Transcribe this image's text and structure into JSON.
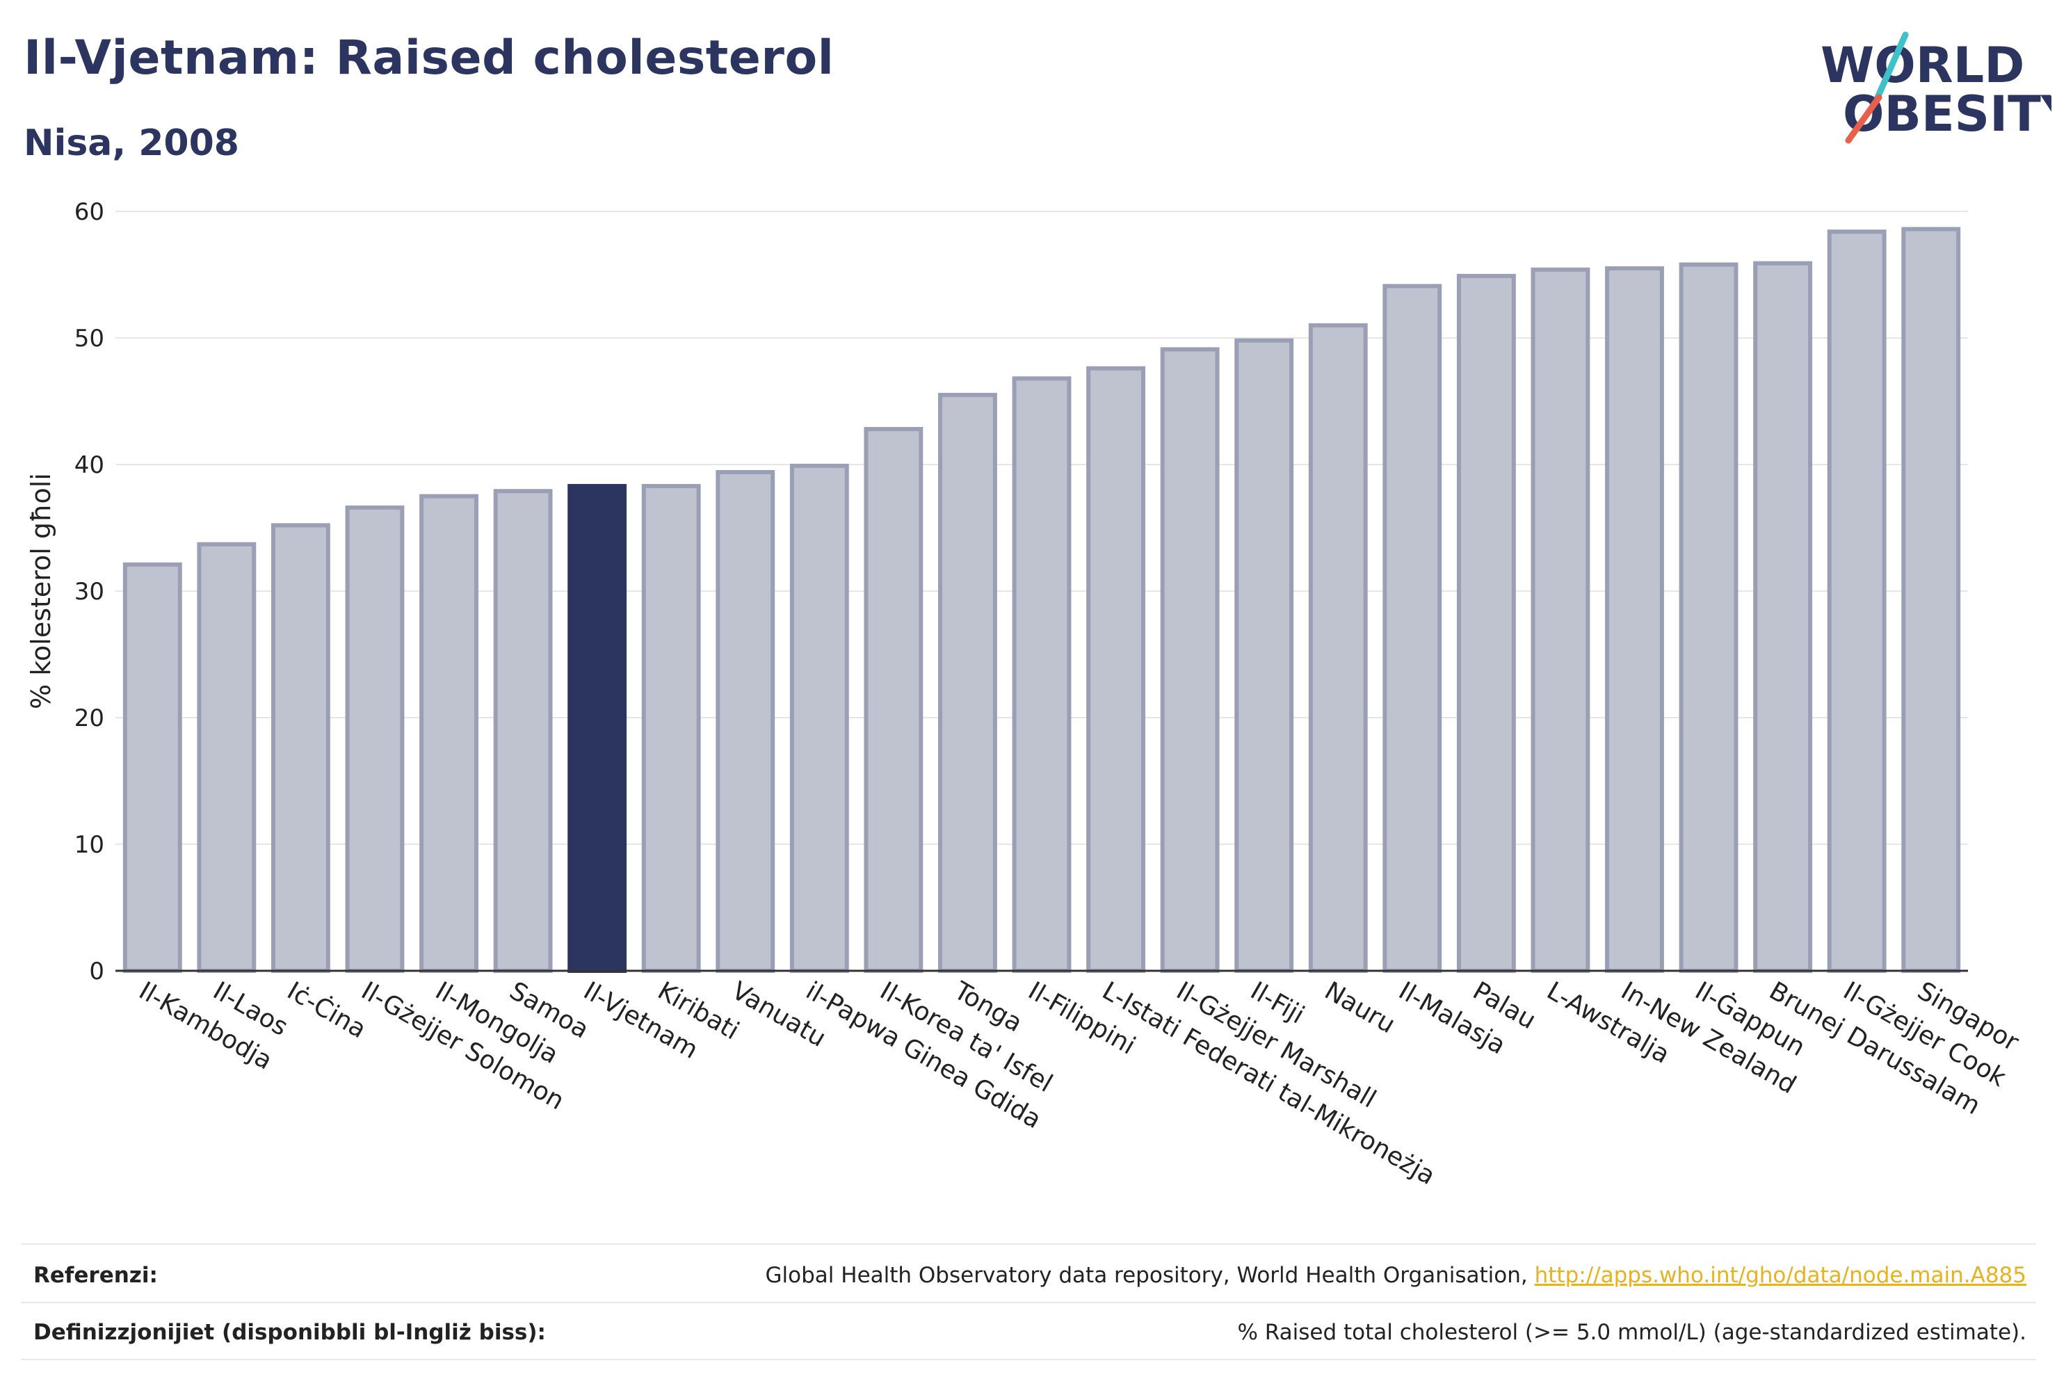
{
  "header": {
    "title": "Il-Vjetnam: Raised cholesterol",
    "subtitle": "Nisa, 2008"
  },
  "logo": {
    "line1": "WORLD",
    "line2": "OBESITY",
    "accent_colors": [
      "#3fc1c9",
      "#e8604c"
    ],
    "text_color": "#2b3560"
  },
  "chart_data": {
    "type": "bar",
    "ylabel": "% kolesterol għoli",
    "xlabel": "",
    "ylim": [
      0,
      60
    ],
    "yticks": [
      0,
      10,
      20,
      30,
      40,
      50,
      60
    ],
    "grid": true,
    "highlight": "Il-Vjetnam",
    "colors": {
      "bar": "#bfc2cf",
      "bar_stroke": "#9a9fb5",
      "highlight": "#2b3560"
    },
    "categories": [
      "Il-Kambodja",
      "Il-Laos",
      "Iċ-Ċina",
      "Il-Gżejjer Solomon",
      "Il-Mongolja",
      "Samoa",
      "Il-Vjetnam",
      "Kiribati",
      "Vanuatu",
      "il-Papwa Ginea Gdida",
      "Il-Korea ta' Isfel",
      "Tonga",
      "Il-Filippini",
      "L-Istati Federati tal-Mikroneżja",
      "Il-Gżejjer Marshall",
      "Il-Fiji",
      "Nauru",
      "Il-Malasja",
      "Palau",
      "L-Awstralja",
      "In-New Zealand",
      "Il-Ġappun",
      "Brunej Darussalam",
      "Il-Gżejjer Cook",
      "Singapor"
    ],
    "values": [
      32.1,
      33.7,
      35.2,
      36.6,
      37.5,
      37.9,
      38.3,
      38.3,
      39.4,
      39.9,
      42.8,
      45.5,
      46.8,
      47.6,
      49.1,
      49.8,
      51.0,
      54.1,
      54.9,
      55.4,
      55.5,
      55.8,
      55.9,
      58.4,
      58.6
    ]
  },
  "footer": {
    "references_label": "Referenzi:",
    "references_text": "Global Health Observatory data repository, World Health Organisation, ",
    "references_link": "http://apps.who.int/gho/data/node.main.A885",
    "definitions_label": "Definizzjonijiet (disponibbli bl-Ingliż biss):",
    "definitions_text": "% Raised total cholesterol (>= 5.0 mmol/L) (age-standardized estimate)."
  }
}
